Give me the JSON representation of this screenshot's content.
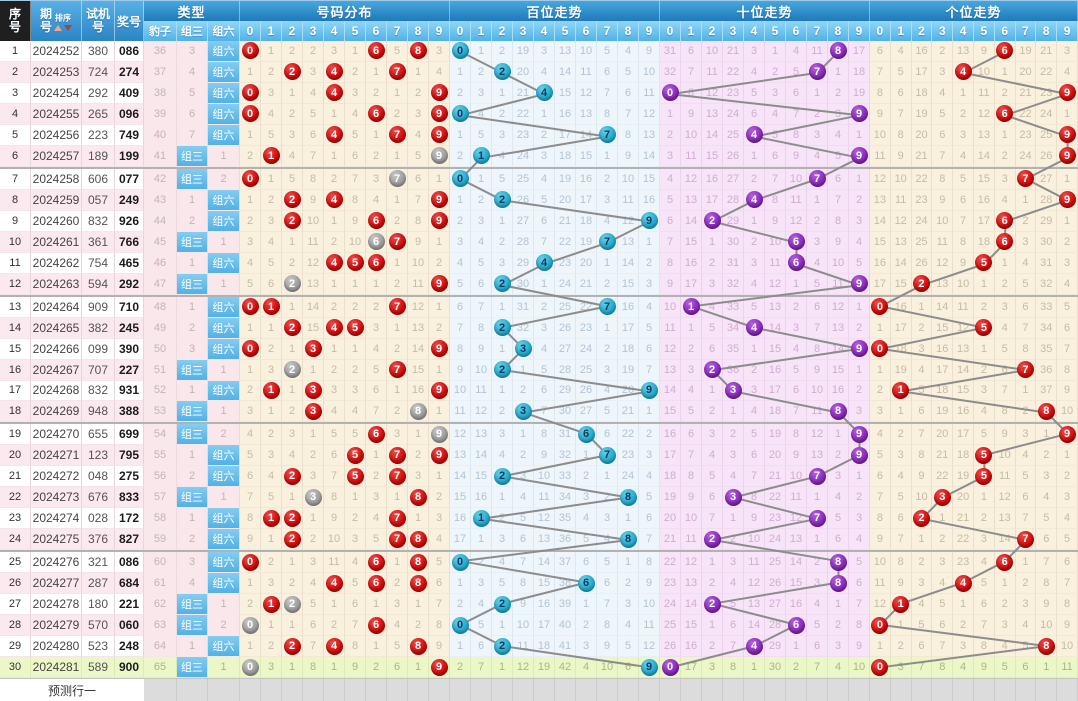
{
  "header": {
    "seq": "序号",
    "period": "期号",
    "sort": "排序",
    "test": "试机号",
    "prize": "奖号",
    "type": "类型",
    "type_subs": [
      "豹子",
      "组三",
      "组六"
    ],
    "sections": [
      "号码分布",
      "百位走势",
      "十位走势",
      "个位走势"
    ],
    "digits": [
      "0",
      "1",
      "2",
      "3",
      "4",
      "5",
      "6",
      "7",
      "8",
      "9"
    ]
  },
  "footer": {
    "predict_label": "预测行一"
  },
  "chart_data": {
    "type": "table",
    "row_groups_separator_after": [
      6,
      12,
      18,
      24
    ],
    "latest_row_highlight": 30,
    "rows": [
      {
        "seq": 1,
        "period": "2024252",
        "test": "380",
        "prize": "086",
        "type": "组六",
        "leopard": 36,
        "group_miss": 3
      },
      {
        "seq": 2,
        "period": "2024253",
        "test": "724",
        "prize": "274",
        "type": "组六",
        "leopard": 37,
        "group_miss": 4
      },
      {
        "seq": 3,
        "period": "2024254",
        "test": "292",
        "prize": "409",
        "type": "组六",
        "leopard": 38,
        "group_miss": 5
      },
      {
        "seq": 4,
        "period": "2024255",
        "test": "265",
        "prize": "096",
        "type": "组六",
        "leopard": 39,
        "group_miss": 6
      },
      {
        "seq": 5,
        "period": "2024256",
        "test": "223",
        "prize": "749",
        "type": "组六",
        "leopard": 40,
        "group_miss": 7
      },
      {
        "seq": 6,
        "period": "2024257",
        "test": "189",
        "prize": "199",
        "type": "组三",
        "leopard": 41,
        "group_miss": 1
      },
      {
        "seq": 7,
        "period": "2024258",
        "test": "606",
        "prize": "077",
        "type": "组三",
        "leopard": 42,
        "group_miss": 2
      },
      {
        "seq": 8,
        "period": "2024259",
        "test": "057",
        "prize": "249",
        "type": "组六",
        "leopard": 43,
        "group_miss": 1
      },
      {
        "seq": 9,
        "period": "2024260",
        "test": "832",
        "prize": "926",
        "type": "组六",
        "leopard": 44,
        "group_miss": 2
      },
      {
        "seq": 10,
        "period": "2024261",
        "test": "361",
        "prize": "766",
        "type": "组三",
        "leopard": 45,
        "group_miss": 1
      },
      {
        "seq": 11,
        "period": "2024262",
        "test": "754",
        "prize": "465",
        "type": "组六",
        "leopard": 46,
        "group_miss": 1
      },
      {
        "seq": 12,
        "period": "2024263",
        "test": "594",
        "prize": "292",
        "type": "组三",
        "leopard": 47,
        "group_miss": 1
      },
      {
        "seq": 13,
        "period": "2024264",
        "test": "909",
        "prize": "710",
        "type": "组六",
        "leopard": 48,
        "group_miss": 1
      },
      {
        "seq": 14,
        "period": "2024265",
        "test": "382",
        "prize": "245",
        "type": "组六",
        "leopard": 49,
        "group_miss": 2
      },
      {
        "seq": 15,
        "period": "2024266",
        "test": "099",
        "prize": "390",
        "type": "组六",
        "leopard": 50,
        "group_miss": 3
      },
      {
        "seq": 16,
        "period": "2024267",
        "test": "707",
        "prize": "227",
        "type": "组三",
        "leopard": 51,
        "group_miss": 1
      },
      {
        "seq": 17,
        "period": "2024268",
        "test": "832",
        "prize": "931",
        "type": "组六",
        "leopard": 52,
        "group_miss": 1
      },
      {
        "seq": 18,
        "period": "2024269",
        "test": "948",
        "prize": "388",
        "type": "组三",
        "leopard": 53,
        "group_miss": 1
      },
      {
        "seq": 19,
        "period": "2024270",
        "test": "655",
        "prize": "699",
        "type": "组三",
        "leopard": 54,
        "group_miss": 2
      },
      {
        "seq": 20,
        "period": "2024271",
        "test": "123",
        "prize": "795",
        "type": "组六",
        "leopard": 55,
        "group_miss": 1
      },
      {
        "seq": 21,
        "period": "2024272",
        "test": "048",
        "prize": "275",
        "type": "组六",
        "leopard": 56,
        "group_miss": 2
      },
      {
        "seq": 22,
        "period": "2024273",
        "test": "676",
        "prize": "833",
        "type": "组三",
        "leopard": 57,
        "group_miss": 1
      },
      {
        "seq": 23,
        "period": "2024274",
        "test": "028",
        "prize": "172",
        "type": "组六",
        "leopard": 58,
        "group_miss": 1
      },
      {
        "seq": 24,
        "period": "2024275",
        "test": "376",
        "prize": "827",
        "type": "组六",
        "leopard": 59,
        "group_miss": 2
      },
      {
        "seq": 25,
        "period": "2024276",
        "test": "321",
        "prize": "086",
        "type": "组六",
        "leopard": 60,
        "group_miss": 3
      },
      {
        "seq": 26,
        "period": "2024277",
        "test": "287",
        "prize": "684",
        "type": "组六",
        "leopard": 61,
        "group_miss": 4
      },
      {
        "seq": 27,
        "period": "2024278",
        "test": "180",
        "prize": "221",
        "type": "组三",
        "leopard": 62,
        "group_miss": 1
      },
      {
        "seq": 28,
        "period": "2024279",
        "test": "570",
        "prize": "060",
        "type": "组三",
        "leopard": 63,
        "group_miss": 2
      },
      {
        "seq": 29,
        "period": "2024280",
        "test": "523",
        "prize": "248",
        "type": "组六",
        "leopard": 64,
        "group_miss": 1
      },
      {
        "seq": 30,
        "period": "2024281",
        "test": "589",
        "prize": "900",
        "type": "组三",
        "leopard": 65,
        "group_miss": 1
      }
    ],
    "initial_miss": {
      "dist": [
        0,
        0,
        1,
        1,
        2,
        0,
        0,
        4,
        0,
        2
      ],
      "hundreds": [
        0,
        0,
        1,
        18,
        2,
        12,
        9,
        4,
        3,
        8
      ],
      "tens": [
        30,
        5,
        9,
        20,
        2,
        0,
        3,
        10,
        0,
        16
      ],
      "units": [
        5,
        3,
        15,
        1,
        12,
        8,
        0,
        18,
        20,
        2
      ]
    },
    "colors": {
      "ball_red": "#d40000",
      "ball_gray": "#a0a0a0",
      "ball_cyan": "#2ab5d1",
      "ball_purple": "#9633cc",
      "badge_blue": "#5cb9e8",
      "latest_row_green": "#ecf7c8",
      "line": "#8c8c8c"
    }
  }
}
